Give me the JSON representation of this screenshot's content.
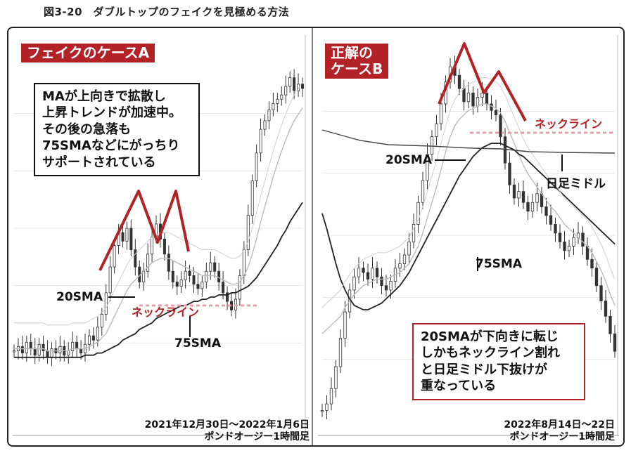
{
  "figure_title": "図3-20　ダブルトップのフェイクを見極める方法",
  "panel_a": {
    "badge": "フェイクのケースA",
    "callout": [
      "MAが上向きで拡散し",
      "上昇トレンドが加速中。",
      "その後の急落も",
      "75SMAなどにがっちり",
      "サポートされている"
    ],
    "label_20sma": "20SMA",
    "label_75sma": "75SMA",
    "label_neckline": "ネックライン",
    "period": "2021年12月30日～2022年1月6日",
    "symbol": "ポンドオージー1時間足"
  },
  "panel_b": {
    "badge_line1": "正解の",
    "badge_line2": "ケースB",
    "callout": [
      "20SMAが下向きに転じ",
      "しかもネックライン割れ",
      "と日足ミドル下抜けが",
      "重なっている"
    ],
    "label_20sma": "20SMA",
    "label_75sma": "75SMA",
    "label_neckline": "ネックライン",
    "label_daily_middle": "日足ミドル",
    "period": "2022年8月14日～22日",
    "symbol": "ポンドオージー1時間足"
  },
  "colors": {
    "accent": "#b32226",
    "neckline": "#e8a0a8",
    "candle": "#333333",
    "ma_dark": "#222222",
    "ma_gray": "#888888",
    "ma_light": "#bbbbbb"
  },
  "chart_data": [
    {
      "type": "line",
      "name": "フェイクのケースA",
      "series": [
        {
          "values": [
            0.23,
            0.25,
            0.22,
            0.27,
            0.24,
            0.21,
            0.26,
            0.23,
            0.2,
            0.24,
            0.22,
            0.25,
            0.21,
            0.23,
            0.27,
            0.24,
            0.22,
            0.26,
            0.3,
            0.28,
            0.34,
            0.4,
            0.5,
            0.62,
            0.72,
            0.78,
            0.74,
            0.8,
            0.7,
            0.62,
            0.55,
            0.6,
            0.68,
            0.76,
            0.82,
            0.75,
            0.68,
            0.6,
            0.55,
            0.53,
            0.56,
            0.6,
            0.58,
            0.54,
            0.52,
            0.55,
            0.6,
            0.64,
            0.6,
            0.55,
            0.5,
            0.46,
            0.42,
            0.47,
            0.58,
            0.7,
            0.86,
            1.02,
            1.15,
            1.26,
            1.3,
            1.35,
            1.38,
            1.4,
            1.42,
            1.46,
            1.5,
            1.44,
            1.47,
            1.45
          ]
        },
        {
          "values": [
            0.24,
            0.24,
            0.24,
            0.24,
            0.24,
            0.24,
            0.24,
            0.24,
            0.23,
            0.23,
            0.23,
            0.23,
            0.23,
            0.23,
            0.24,
            0.24,
            0.24,
            0.24,
            0.25,
            0.26,
            0.27,
            0.29,
            0.31,
            0.35,
            0.39,
            0.43,
            0.47,
            0.51,
            0.54,
            0.56,
            0.58,
            0.6,
            0.62,
            0.64,
            0.65,
            0.66,
            0.66,
            0.66,
            0.65,
            0.64,
            0.63,
            0.62,
            0.61,
            0.6,
            0.59,
            0.58,
            0.58,
            0.58,
            0.58,
            0.57,
            0.56,
            0.55,
            0.54,
            0.54,
            0.55,
            0.58,
            0.62,
            0.68,
            0.75,
            0.83,
            0.9,
            0.97,
            1.04,
            1.1,
            1.16,
            1.21,
            1.26,
            1.3,
            1.33,
            1.36
          ]
        },
        {
          "values": [
            0.2,
            0.2,
            0.2,
            0.2,
            0.2,
            0.2,
            0.2,
            0.2,
            0.2,
            0.2,
            0.2,
            0.2,
            0.2,
            0.2,
            0.2,
            0.2,
            0.2,
            0.21,
            0.21,
            0.21,
            0.22,
            0.22,
            0.23,
            0.24,
            0.25,
            0.26,
            0.28,
            0.29,
            0.3,
            0.31,
            0.33,
            0.34,
            0.35,
            0.36,
            0.38,
            0.39,
            0.4,
            0.41,
            0.42,
            0.43,
            0.44,
            0.44,
            0.45,
            0.46,
            0.46,
            0.47,
            0.47,
            0.48,
            0.48,
            0.49,
            0.49,
            0.49,
            0.5,
            0.5,
            0.51,
            0.52,
            0.53,
            0.55,
            0.57,
            0.6,
            0.63,
            0.66,
            0.69,
            0.72,
            0.76,
            0.79,
            0.83,
            0.86,
            0.89,
            0.92
          ]
        }
      ]
    },
    {
      "type": "line",
      "name": "正解のケースB",
      "series": [
        {
          "values": [
            0.05,
            0.08,
            0.15,
            0.25,
            0.38,
            0.5,
            0.6,
            0.66,
            0.7,
            0.68,
            0.65,
            0.7,
            0.66,
            0.62,
            0.6,
            0.64,
            0.7,
            0.72,
            0.76,
            0.82,
            0.9,
            1.0,
            1.1,
            1.22,
            1.3,
            1.36,
            1.45,
            1.55,
            1.62,
            1.58,
            1.52,
            1.46,
            1.5,
            1.44,
            1.48,
            1.5,
            1.45,
            1.42,
            1.4,
            1.3,
            1.18,
            1.08,
            1.02,
            1.05,
            1.0,
            0.96,
            1.0,
            1.04,
            0.98,
            0.94,
            0.9,
            0.86,
            0.82,
            0.78,
            0.8,
            0.84,
            0.86,
            0.8,
            0.74,
            0.7,
            0.62,
            0.55,
            0.48,
            0.4,
            0.32
          ]
        },
        {
          "values": [
            0.4,
            0.42,
            0.44,
            0.46,
            0.48,
            0.52,
            0.55,
            0.58,
            0.6,
            0.62,
            0.63,
            0.64,
            0.65,
            0.65,
            0.65,
            0.66,
            0.67,
            0.68,
            0.7,
            0.72,
            0.76,
            0.8,
            0.86,
            0.93,
            1.0,
            1.07,
            1.15,
            1.23,
            1.3,
            1.35,
            1.38,
            1.4,
            1.42,
            1.43,
            1.44,
            1.45,
            1.45,
            1.44,
            1.43,
            1.41,
            1.37,
            1.32,
            1.27,
            1.22,
            1.17,
            1.13,
            1.1,
            1.07,
            1.04,
            1.01,
            0.98,
            0.96,
            0.93,
            0.9,
            0.88,
            0.86,
            0.84,
            0.82,
            0.8,
            0.77,
            0.73,
            0.69,
            0.64,
            0.58,
            0.53
          ]
        },
        {
          "values": [
            0.95,
            0.88,
            0.8,
            0.72,
            0.65,
            0.6,
            0.56,
            0.53,
            0.52,
            0.51,
            0.51,
            0.52,
            0.53,
            0.54,
            0.56,
            0.58,
            0.6,
            0.62,
            0.65,
            0.68,
            0.72,
            0.76,
            0.8,
            0.84,
            0.88,
            0.92,
            0.96,
            1.0,
            1.04,
            1.08,
            1.12,
            1.15,
            1.18,
            1.21,
            1.23,
            1.25,
            1.26,
            1.27,
            1.27,
            1.27,
            1.26,
            1.25,
            1.24,
            1.22,
            1.21,
            1.19,
            1.17,
            1.15,
            1.13,
            1.11,
            1.09,
            1.07,
            1.05,
            1.03,
            1.01,
            0.99,
            0.97,
            0.95,
            0.93,
            0.91,
            0.89,
            0.87,
            0.85,
            0.83,
            0.81
          ]
        }
      ]
    }
  ]
}
